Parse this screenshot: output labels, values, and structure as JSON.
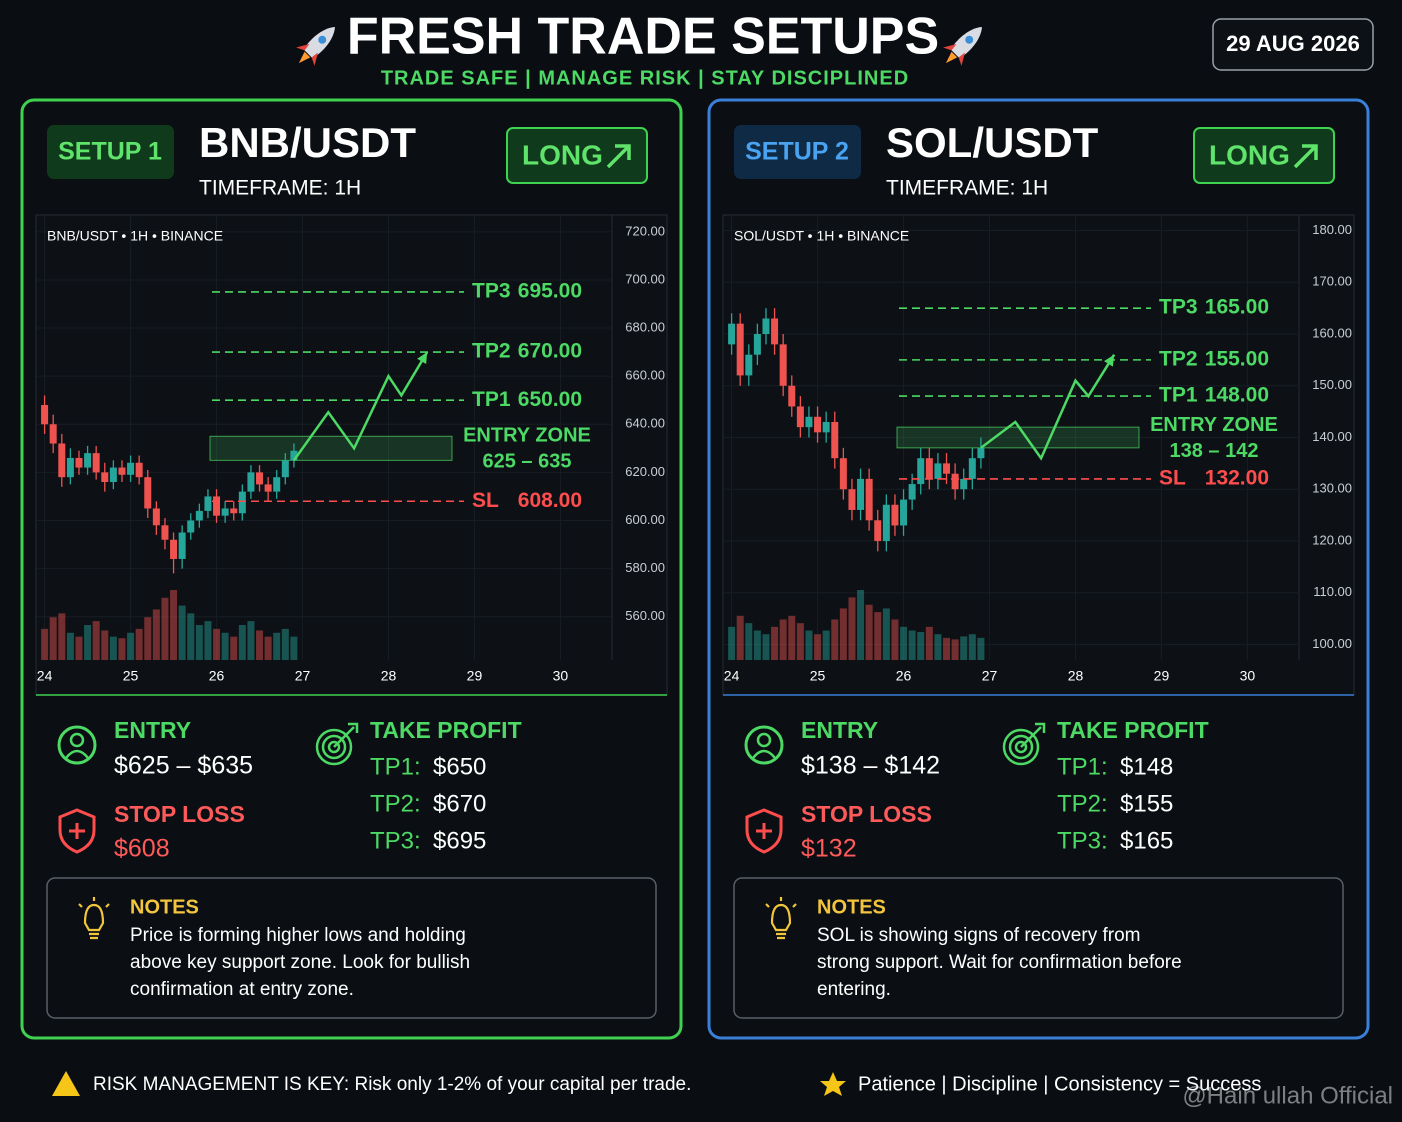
{
  "header": {
    "title": "FRESH TRADE SETUPS",
    "subtitle": "TRADE SAFE | MANAGE RISK | STAY DISCIPLINED",
    "date": "29 AUG 2026"
  },
  "setups": [
    {
      "badge": "SETUP 1",
      "pair": "BNB/USDT",
      "timeframe": "TIMEFRAME: 1H",
      "direction": "LONG",
      "color": "#3fd14f",
      "entry": {
        "label": "ENTRY",
        "value": "$625 – $635"
      },
      "stop_loss": {
        "label": "STOP LOSS",
        "value": "$608"
      },
      "take_profit": {
        "label": "TAKE PROFIT",
        "targets": [
          {
            "label": "TP1:",
            "value": "$650"
          },
          {
            "label": "TP2:",
            "value": "$670"
          },
          {
            "label": "TP3:",
            "value": "$695"
          }
        ]
      },
      "notes": {
        "title": "NOTES",
        "lines": [
          "Price is forming higher lows and holding",
          "above key support zone. Look for bullish",
          "confirmation at entry zone."
        ]
      }
    },
    {
      "badge": "SETUP 2",
      "pair": "SOL/USDT",
      "timeframe": "TIMEFRAME: 1H",
      "direction": "LONG",
      "color": "#3a7fd8",
      "entry": {
        "label": "ENTRY",
        "value": "$138 – $142"
      },
      "stop_loss": {
        "label": "STOP LOSS",
        "value": "$132"
      },
      "take_profit": {
        "label": "TAKE PROFIT",
        "targets": [
          {
            "label": "TP1:",
            "value": "$148"
          },
          {
            "label": "TP2:",
            "value": "$155"
          },
          {
            "label": "TP3:",
            "value": "$165"
          }
        ]
      },
      "notes": {
        "title": "NOTES",
        "lines": [
          "SOL is showing signs of recovery from",
          "strong support. Wait for confirmation before",
          "entering."
        ]
      }
    }
  ],
  "chart_data": [
    {
      "type": "candlestick",
      "title": "BNB/USDT • 1H • BINANCE",
      "xlim": [
        23.9,
        30.6
      ],
      "xticks": [
        24,
        25,
        26,
        27,
        28,
        29,
        30
      ],
      "ylim": [
        542,
        727
      ],
      "yticks": [
        {
          "value": 720,
          "label": "720.00"
        },
        {
          "value": 700,
          "label": "700.00"
        },
        {
          "value": 680,
          "label": "680.00"
        },
        {
          "value": 660,
          "label": "660.00"
        },
        {
          "value": 640,
          "label": "640.00"
        },
        {
          "value": 620,
          "label": "620.00"
        },
        {
          "value": 600,
          "label": "600.00"
        },
        {
          "value": 580,
          "label": "580.00"
        },
        {
          "value": 560,
          "label": "560.00"
        }
      ],
      "x": [
        24,
        24.1,
        24.2,
        24.3,
        24.4,
        24.5,
        24.6,
        24.7,
        24.8,
        24.9,
        25,
        25.1,
        25.2,
        25.3,
        25.4,
        25.5,
        25.6,
        25.7,
        25.8,
        25.9,
        26,
        26.1,
        26.2,
        26.3,
        26.4,
        26.5,
        26.6,
        26.7,
        26.8,
        26.9
      ],
      "open": [
        648,
        640,
        632,
        618,
        626,
        622,
        628,
        620,
        616,
        622,
        619,
        624,
        618,
        605,
        598,
        592,
        584,
        595,
        600,
        604,
        610,
        602,
        605,
        603,
        612,
        620,
        615,
        612,
        618,
        625
      ],
      "high": [
        652,
        644,
        636,
        630,
        629,
        631,
        631,
        624,
        625,
        625,
        627,
        627,
        621,
        608,
        601,
        595,
        598,
        603,
        607,
        613,
        613,
        608,
        608,
        615,
        623,
        623,
        618,
        621,
        628,
        632
      ],
      "low": [
        636,
        628,
        614,
        615,
        619,
        619,
        617,
        612,
        613,
        616,
        616,
        615,
        601,
        594,
        588,
        578,
        580,
        592,
        597,
        601,
        599,
        599,
        600,
        600,
        609,
        612,
        608,
        609,
        615,
        622
      ],
      "close": [
        640,
        632,
        618,
        626,
        622,
        628,
        620,
        616,
        622,
        619,
        624,
        618,
        605,
        598,
        592,
        584,
        595,
        600,
        604,
        610,
        602,
        605,
        603,
        612,
        620,
        615,
        612,
        618,
        625,
        629
      ],
      "volume": [
        40,
        55,
        60,
        35,
        30,
        45,
        50,
        38,
        30,
        28,
        35,
        40,
        55,
        65,
        80,
        90,
        70,
        60,
        45,
        50,
        40,
        35,
        30,
        45,
        50,
        38,
        30,
        35,
        40,
        30
      ],
      "up_color": "#26a69a",
      "down_color": "#ef5350",
      "levels": [
        {
          "name": "TP3",
          "value": 695,
          "value_label": "695.00",
          "color": "#4cd964"
        },
        {
          "name": "TP2",
          "value": 670,
          "value_label": "670.00",
          "color": "#4cd964"
        },
        {
          "name": "TP1",
          "value": 650,
          "value_label": "650.00",
          "color": "#4cd964"
        },
        {
          "name": "SL",
          "value": 608,
          "value_label": "608.00",
          "color": "#ff4d4d"
        }
      ],
      "entry_zone": {
        "label": "ENTRY ZONE",
        "range": [
          625,
          635
        ],
        "range_label": "625 – 635",
        "color": "#4cd964"
      },
      "projection": {
        "x": [
          26.9,
          27.3,
          27.6,
          28.0,
          28.15,
          28.45
        ],
        "values": [
          625,
          645,
          630,
          660,
          652,
          670
        ],
        "color": "#4cd964"
      }
    },
    {
      "type": "candlestick",
      "title": "SOL/USDT • 1H • BINANCE",
      "xlim": [
        23.9,
        30.6
      ],
      "xticks": [
        24,
        25,
        26,
        27,
        28,
        29,
        30
      ],
      "ylim": [
        97,
        183
      ],
      "yticks": [
        {
          "value": 180,
          "label": "180.00"
        },
        {
          "value": 170,
          "label": "170.00"
        },
        {
          "value": 160,
          "label": "160.00"
        },
        {
          "value": 150,
          "label": "150.00"
        },
        {
          "value": 140,
          "label": "140.00"
        },
        {
          "value": 130,
          "label": "130.00"
        },
        {
          "value": 120,
          "label": "120.00"
        },
        {
          "value": 110,
          "label": "110.00"
        },
        {
          "value": 100,
          "label": "100.00"
        }
      ],
      "x": [
        24,
        24.1,
        24.2,
        24.3,
        24.4,
        24.5,
        24.6,
        24.7,
        24.8,
        24.9,
        25,
        25.1,
        25.2,
        25.3,
        25.4,
        25.5,
        25.6,
        25.7,
        25.8,
        25.9,
        26,
        26.1,
        26.2,
        26.3,
        26.4,
        26.5,
        26.6,
        26.7,
        26.8,
        26.9
      ],
      "open": [
        158,
        162,
        152,
        156,
        160,
        163,
        158,
        150,
        146,
        142,
        144,
        141,
        143,
        136,
        130,
        126,
        132,
        124,
        120,
        127,
        123,
        128,
        131,
        136,
        132,
        135,
        133,
        130,
        132,
        136
      ],
      "high": [
        164,
        164,
        158,
        162,
        165,
        165,
        160,
        152,
        148,
        146,
        146,
        145,
        145,
        138,
        132,
        134,
        134,
        126,
        129,
        129,
        130,
        133,
        138,
        138,
        137,
        137,
        135,
        134,
        138,
        140
      ],
      "low": [
        156,
        150,
        150,
        154,
        158,
        156,
        148,
        144,
        140,
        140,
        139,
        139,
        134,
        128,
        124,
        124,
        122,
        118,
        118,
        121,
        121,
        126,
        129,
        130,
        130,
        131,
        128,
        128,
        130,
        134
      ],
      "close": [
        162,
        152,
        156,
        160,
        163,
        158,
        150,
        146,
        142,
        144,
        141,
        143,
        136,
        130,
        126,
        132,
        124,
        120,
        127,
        123,
        128,
        131,
        136,
        132,
        135,
        133,
        130,
        132,
        136,
        138
      ],
      "volume": [
        45,
        60,
        50,
        40,
        35,
        45,
        55,
        60,
        50,
        40,
        35,
        40,
        55,
        70,
        85,
        95,
        75,
        65,
        70,
        55,
        45,
        40,
        38,
        45,
        35,
        30,
        28,
        32,
        35,
        30
      ],
      "up_color": "#26a69a",
      "down_color": "#ef5350",
      "levels": [
        {
          "name": "TP3",
          "value": 165,
          "value_label": "165.00",
          "color": "#4cd964"
        },
        {
          "name": "TP2",
          "value": 155,
          "value_label": "155.00",
          "color": "#4cd964"
        },
        {
          "name": "TP1",
          "value": 148,
          "value_label": "148.00",
          "color": "#4cd964"
        },
        {
          "name": "SL",
          "value": 132,
          "value_label": "132.00",
          "color": "#ff4d4d"
        }
      ],
      "entry_zone": {
        "label": "ENTRY ZONE",
        "range": [
          138,
          142
        ],
        "range_label": "138 – 142",
        "color": "#4cd964"
      },
      "projection": {
        "x": [
          26.9,
          27.3,
          27.6,
          28.0,
          28.15,
          28.45
        ],
        "values": [
          138,
          143,
          136,
          151,
          148,
          156
        ],
        "color": "#4cd964"
      }
    }
  ],
  "footer": {
    "warning": "RISK MANAGEMENT IS KEY: Risk only 1-2% of your capital per trade.",
    "motto": "Patience  |  Discipline  |  Consistency = Success",
    "watermark": "@Hain ullah Official"
  }
}
